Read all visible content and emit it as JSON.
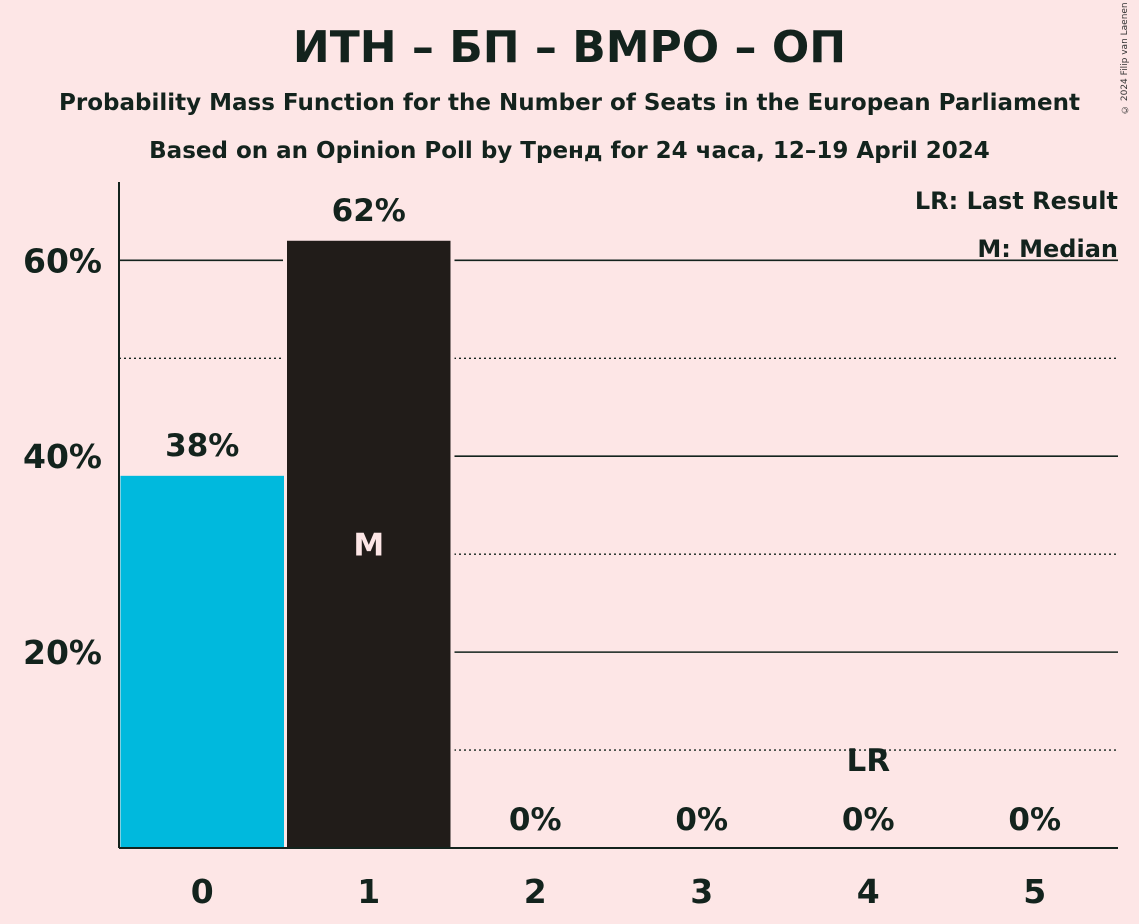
{
  "header": {
    "title": "ИТН – БП – ВМРО – ОП",
    "subtitle": "Probability Mass Function for the Number of Seats in the European Parliament",
    "source": "Based on an Opinion Poll by Тренд for 24 часа, 12–19 April 2024",
    "copyright": "© 2024 Filip van Laenen"
  },
  "legend": {
    "last_result": "LR: Last Result",
    "median": "M: Median"
  },
  "colors": {
    "background": "#fde6e6",
    "primary": "#00b9dd",
    "secondary": "#211c19",
    "text": "#13231d"
  },
  "chart_data": {
    "type": "bar",
    "categories": [
      "0",
      "1",
      "2",
      "3",
      "4",
      "5"
    ],
    "values": [
      38,
      62,
      0,
      0,
      0,
      0
    ],
    "value_labels": [
      "38%",
      "62%",
      "0%",
      "0%",
      "0%",
      "0%"
    ],
    "bar_colors": [
      "#00b9dd",
      "#211c19",
      "#211c19",
      "#211c19",
      "#211c19",
      "#211c19"
    ],
    "title": "ИТН – БП – ВМРО – ОП",
    "ylim": [
      0,
      68
    ],
    "yticks": [
      20,
      40,
      60
    ],
    "ytick_labels": [
      "20%",
      "40%",
      "60%"
    ],
    "minor_gridlines": [
      10,
      30,
      50
    ],
    "median_seat": 1,
    "median_marker": "M",
    "last_result_seat": 4,
    "last_result_marker": "LR",
    "legend_position": "top-right"
  }
}
